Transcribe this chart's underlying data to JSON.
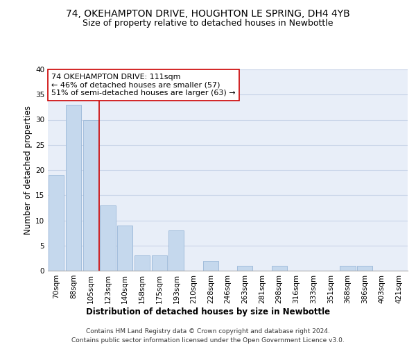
{
  "title": "74, OKEHAMPTON DRIVE, HOUGHTON LE SPRING, DH4 4YB",
  "subtitle": "Size of property relative to detached houses in Newbottle",
  "xlabel": "Distribution of detached houses by size in Newbottle",
  "ylabel": "Number of detached properties",
  "footer_line1": "Contains HM Land Registry data © Crown copyright and database right 2024.",
  "footer_line2": "Contains public sector information licensed under the Open Government Licence v3.0.",
  "categories": [
    "70sqm",
    "88sqm",
    "105sqm",
    "123sqm",
    "140sqm",
    "158sqm",
    "175sqm",
    "193sqm",
    "210sqm",
    "228sqm",
    "246sqm",
    "263sqm",
    "281sqm",
    "298sqm",
    "316sqm",
    "333sqm",
    "351sqm",
    "368sqm",
    "386sqm",
    "403sqm",
    "421sqm"
  ],
  "values": [
    19,
    33,
    30,
    13,
    9,
    3,
    3,
    8,
    0,
    2,
    0,
    1,
    0,
    1,
    0,
    0,
    0,
    1,
    1,
    0,
    0
  ],
  "bar_color": "#c5d8ed",
  "bar_edgecolor": "#9ab8d8",
  "ylim": [
    0,
    40
  ],
  "yticks": [
    0,
    5,
    10,
    15,
    20,
    25,
    30,
    35,
    40
  ],
  "grid_color": "#c8d4e8",
  "background_color": "#e8eef8",
  "vline_x": 2.5,
  "vline_color": "#cc0000",
  "annotation_text": "74 OKEHAMPTON DRIVE: 111sqm\n← 46% of detached houses are smaller (57)\n51% of semi-detached houses are larger (63) →",
  "annotation_box_color": "#ffffff",
  "annotation_box_edgecolor": "#cc0000",
  "title_fontsize": 10,
  "subtitle_fontsize": 9,
  "axis_label_fontsize": 8.5,
  "tick_fontsize": 7.5,
  "annotation_fontsize": 8,
  "footer_fontsize": 6.5
}
